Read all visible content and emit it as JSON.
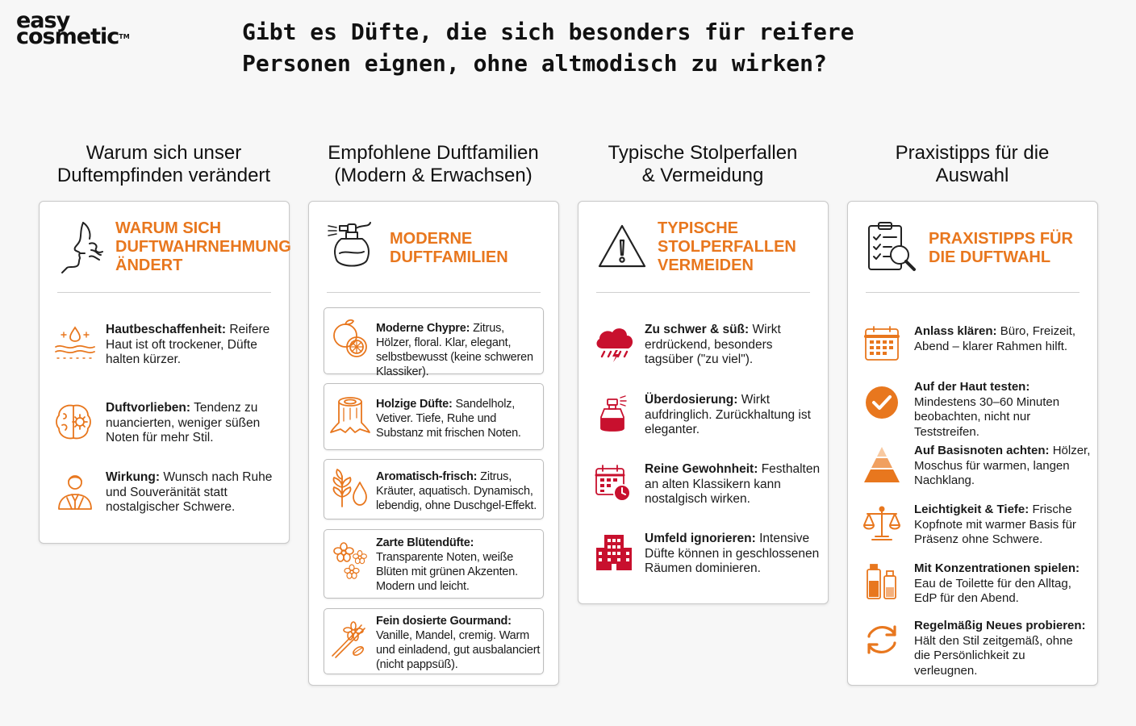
{
  "logo": {
    "line1": "easy",
    "line2": "cosmetic",
    "tm": "TM"
  },
  "title": "Gibt es Düfte, die sich besonders für reifere Personen eignen, ohne altmodisch zu wirken?",
  "colors": {
    "accent": "#e8771e",
    "red": "#c8102e"
  },
  "columns": [
    {
      "title_line1": "Warum sich unser",
      "title_line2": "Duftempfinden verändert",
      "head_line1": "WARUM SICH",
      "head_line2": "DUFTWAHRNEHMUNG",
      "head_line3": "ÄNDERT",
      "head_icon": "face-smell-icon",
      "items": [
        {
          "icon": "skin-drop-icon",
          "bold": "Hautbeschaffenheit:",
          "text": "Reifere Haut ist oft trockener, Düfte halten kürzer."
        },
        {
          "icon": "brain-gear-icon",
          "bold": "Duftvorlieben:",
          "text": "Tendenz zu nuancierten, weniger süßen Noten für mehr Stil."
        },
        {
          "icon": "person-icon",
          "bold": "Wirkung:",
          "text": "Wunsch nach Ruhe und Souveränität statt nostalgischer Schwere."
        }
      ]
    },
    {
      "title_line1": "Empfohlene Duftfamilien",
      "title_line2": "(Modern & Erwachsen)",
      "head_line1": "MODERNE",
      "head_line2": "DUFTFAMILIEN",
      "head_icon": "perfume-atomizer-icon",
      "items": [
        {
          "icon": "citrus-icon",
          "bold": "Moderne Chypre:",
          "text": "Zitrus, Hölzer, floral. Klar, elegant, selbstbewusst (keine schweren Klassiker)."
        },
        {
          "icon": "tree-stump-icon",
          "bold": "Holzige Düfte:",
          "text": "Sandelholz, Vetiver. Tiefe, Ruhe und Substanz mit frischen Noten."
        },
        {
          "icon": "herb-drop-icon",
          "bold": "Aromatisch-frisch:",
          "text": "Zitrus, Kräuter, aquatisch. Dynamisch, lebendig, ohne Duschgel-Effekt."
        },
        {
          "icon": "flowers-icon",
          "bold": "Zarte Blütendüfte:",
          "text": "Transparente Noten, weiße Blüten mit grünen Akzenten. Modern und leicht."
        },
        {
          "icon": "vanilla-icon",
          "bold": "Fein dosierte Gourmand:",
          "text": "Vanille, Mandel, cremig. Warm und einladend, gut ausbalanciert (nicht pappsüß)."
        }
      ]
    },
    {
      "title_line1": "Typische Stolperfallen",
      "title_line2": "& Vermeidung",
      "head_line1": "TYPISCHE",
      "head_line2": "STOLPERFALLEN",
      "head_line3": "VERMEIDEN",
      "head_icon": "warning-icon",
      "items": [
        {
          "icon": "storm-cloud-icon",
          "bold": "Zu schwer & süß:",
          "text": "Wirkt erdrückend, besonders tagsüber (\"zu viel\")."
        },
        {
          "icon": "perfume-bottle-icon",
          "bold": "Überdosierung:",
          "text": "Wirkt aufdringlich. Zurückhaltung ist eleganter."
        },
        {
          "icon": "calendar-clock-icon",
          "bold": "Reine Gewohnheit:",
          "text": "Festhalten an alten Klassikern kann nostalgisch wirken."
        },
        {
          "icon": "building-icon",
          "bold": "Umfeld ignorieren:",
          "text": "Intensive Düfte können in geschlossenen Räumen dominieren."
        }
      ]
    },
    {
      "title_line1": "Praxistipps für die",
      "title_line2": "Auswahl",
      "head_line1": "PRAXISTIPPS FÜR",
      "head_line2": "DIE DUFTWAHL",
      "head_icon": "checklist-magnifier-icon",
      "items": [
        {
          "icon": "calendar-icon",
          "bold": "Anlass klären:",
          "text": "Büro, Freizeit, Abend – klarer Rahmen hilft."
        },
        {
          "icon": "check-circle-icon",
          "bold": "Auf der Haut testen:",
          "text": "Mindestens 30–60 Minuten beobachten, nicht nur Teststreifen."
        },
        {
          "icon": "pyramid-icon",
          "bold": "Auf Basisnoten achten:",
          "text": "Hölzer, Moschus für warmen, langen Nachklang."
        },
        {
          "icon": "scale-icon",
          "bold": "Leichtigkeit & Tiefe:",
          "text": "Frische Kopfnote mit warmer Basis für Präsenz ohne Schwere."
        },
        {
          "icon": "bottles-icon",
          "bold": "Mit Konzentrationen spielen:",
          "text": "Eau de Toilette für den Alltag, EdP für den Abend."
        },
        {
          "icon": "refresh-icon",
          "bold": "Regelmäßig Neues probieren:",
          "text": "Hält den Stil zeitgemäß, ohne die Persönlichkeit zu verleugnen."
        }
      ]
    }
  ]
}
